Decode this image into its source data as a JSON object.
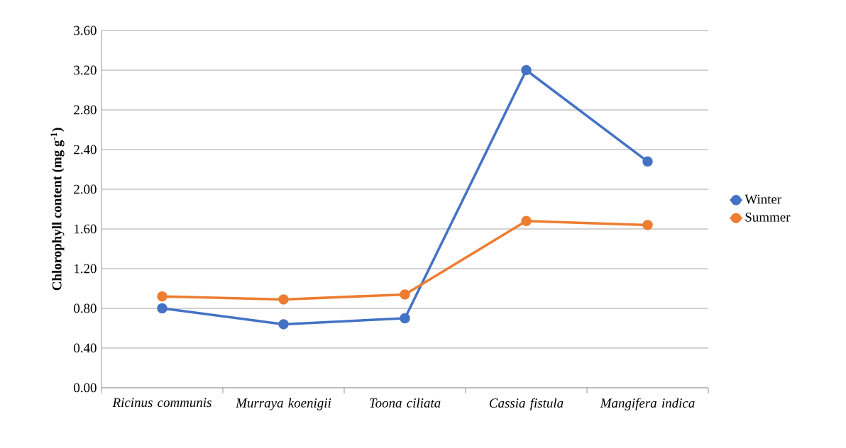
{
  "chart_data": {
    "type": "line",
    "ylabel": "Chlorophyll content (mg g$^{-1}$)",
    "categories": [
      "Ricinus communis",
      "Murraya koenigii",
      "Toona ciliata",
      "Cassia fistula",
      "Mangifera indica"
    ],
    "series": [
      {
        "name": "Winter",
        "color": "#4472c4",
        "values": [
          0.8,
          0.64,
          0.7,
          3.2,
          2.28
        ]
      },
      {
        "name": "Summer",
        "color": "#ed7d31",
        "values": [
          0.92,
          0.89,
          0.94,
          1.68,
          1.64
        ]
      }
    ],
    "ylim": [
      0,
      3.6
    ],
    "yticks": [
      {
        "value": 0,
        "label": "0.00"
      },
      {
        "value": 0.4,
        "label": "0.40"
      },
      {
        "value": 0.8,
        "label": "0.80"
      },
      {
        "value": 1.2,
        "label": "1.20"
      },
      {
        "value": 1.6,
        "label": "1.60"
      },
      {
        "value": 2.0,
        "label": "2.00"
      },
      {
        "value": 2.4,
        "label": "2.40"
      },
      {
        "value": 2.8,
        "label": "2.80"
      },
      {
        "value": 3.2,
        "label": "3.20"
      },
      {
        "value": 3.6,
        "label": "3.60"
      }
    ],
    "grid": "y",
    "legend": "right",
    "marker": "circle",
    "line_style": "solid"
  }
}
